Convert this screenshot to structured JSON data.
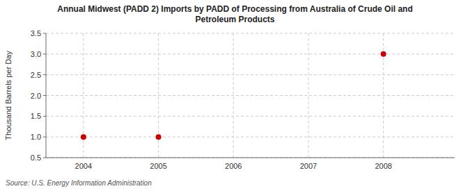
{
  "chart_data": {
    "type": "scatter",
    "title": "Annual Midwest (PADD 2) Imports by PADD of Processing from Australia of Crude Oil and\nPetroleum Products",
    "y_label": "Thousand Barrels per Day",
    "source": "Source: U.S. Energy Information Administration",
    "x": [
      2004,
      2005,
      2008
    ],
    "values": [
      1.0,
      1.0,
      3.0
    ],
    "color": "#cc0000",
    "xlim": [
      2003.5,
      2008.95
    ],
    "ylim": [
      0.5,
      3.5
    ],
    "xticks": [
      2004,
      2005,
      2006,
      2007,
      2008
    ],
    "yticks": [
      0.5,
      {
        "value": 1.0,
        "label": "1.0"
      },
      1.5,
      {
        "value": 2.0,
        "label": "2.0"
      },
      2.5,
      {
        "value": 3.0,
        "label": "3.0"
      },
      3.5
    ],
    "grid": true
  }
}
